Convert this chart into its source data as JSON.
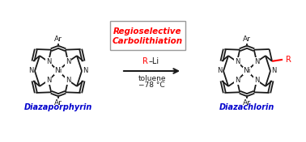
{
  "bg_color": "#ffffff",
  "red_color": "#ff0000",
  "blue_color": "#0000cd",
  "black_color": "#1a1a1a",
  "box_text_line1": "Regioselective",
  "box_text_line2": "Carbolithiation",
  "label_left": "Diazaporphyrin",
  "label_right": "Diazachlorin",
  "lw": 1.3
}
